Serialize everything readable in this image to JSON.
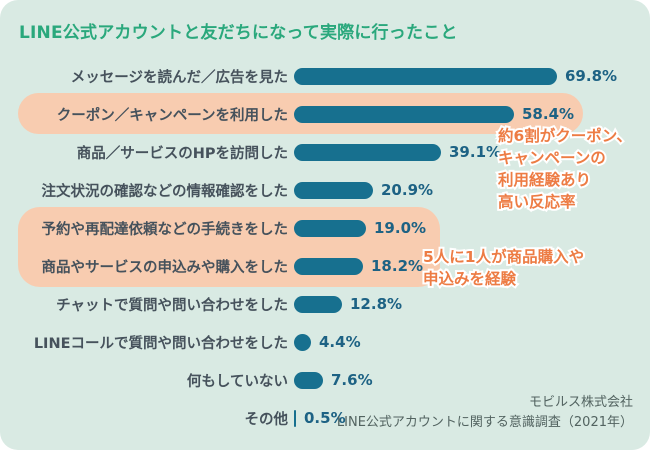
{
  "card": {
    "title": "LINE公式アカウントと友だちになって実際に行ったこと",
    "source_line1": "モビルス株式会社",
    "source_line2": "LINE公式アカウントに関する意識調査（2021年）"
  },
  "colors": {
    "page_background": "#ffffff",
    "card_background": "#d9eae3",
    "title_green": "#2aa87c",
    "bar_teal": "#17708f",
    "value_text": "#1d6284",
    "label_text": "#46525c",
    "highlight_peach": "#f8ccb0",
    "annotation_orange": "#ed7c44",
    "source_text": "#526360"
  },
  "chart_data": {
    "type": "bar",
    "orientation": "horizontal",
    "title": "LINE公式アカウントと友だちになって実際に行ったこと",
    "unit": "%",
    "xlim": [
      0,
      75
    ],
    "grid": false,
    "legend": "none",
    "categories": [
      "メッセージを読んだ／広告を見た",
      "クーポン／キャンペーンを利用した",
      "商品／サービスのHPを訪問した",
      "注文状況の確認などの情報確認をした",
      "予約や再配達依頼などの手続きをした",
      "商品やサービスの申込みや購入をした",
      "チャットで質問や問い合わせをした",
      "LINEコールで質問や問い合わせをした",
      "何もしていない",
      "その他"
    ],
    "values": [
      69.8,
      58.4,
      39.1,
      20.9,
      19.0,
      18.2,
      12.8,
      4.4,
      7.6,
      0.5
    ],
    "value_labels": [
      "69.8%",
      "58.4%",
      "39.1%",
      "20.9%",
      "19.0%",
      "18.2%",
      "12.8%",
      "4.4%",
      "7.6%",
      "0.5%"
    ],
    "highlighted_row_indices": [
      1,
      4,
      5
    ]
  },
  "annotations": {
    "coupon": {
      "line1": "約6割がクーポン、",
      "line2": "キャンペーンの",
      "line3": "利用経験あり",
      "line4": "高い反応率"
    },
    "purchase": {
      "line1": "5人に1人が商品購入や",
      "line2": "申込みを経験"
    }
  }
}
